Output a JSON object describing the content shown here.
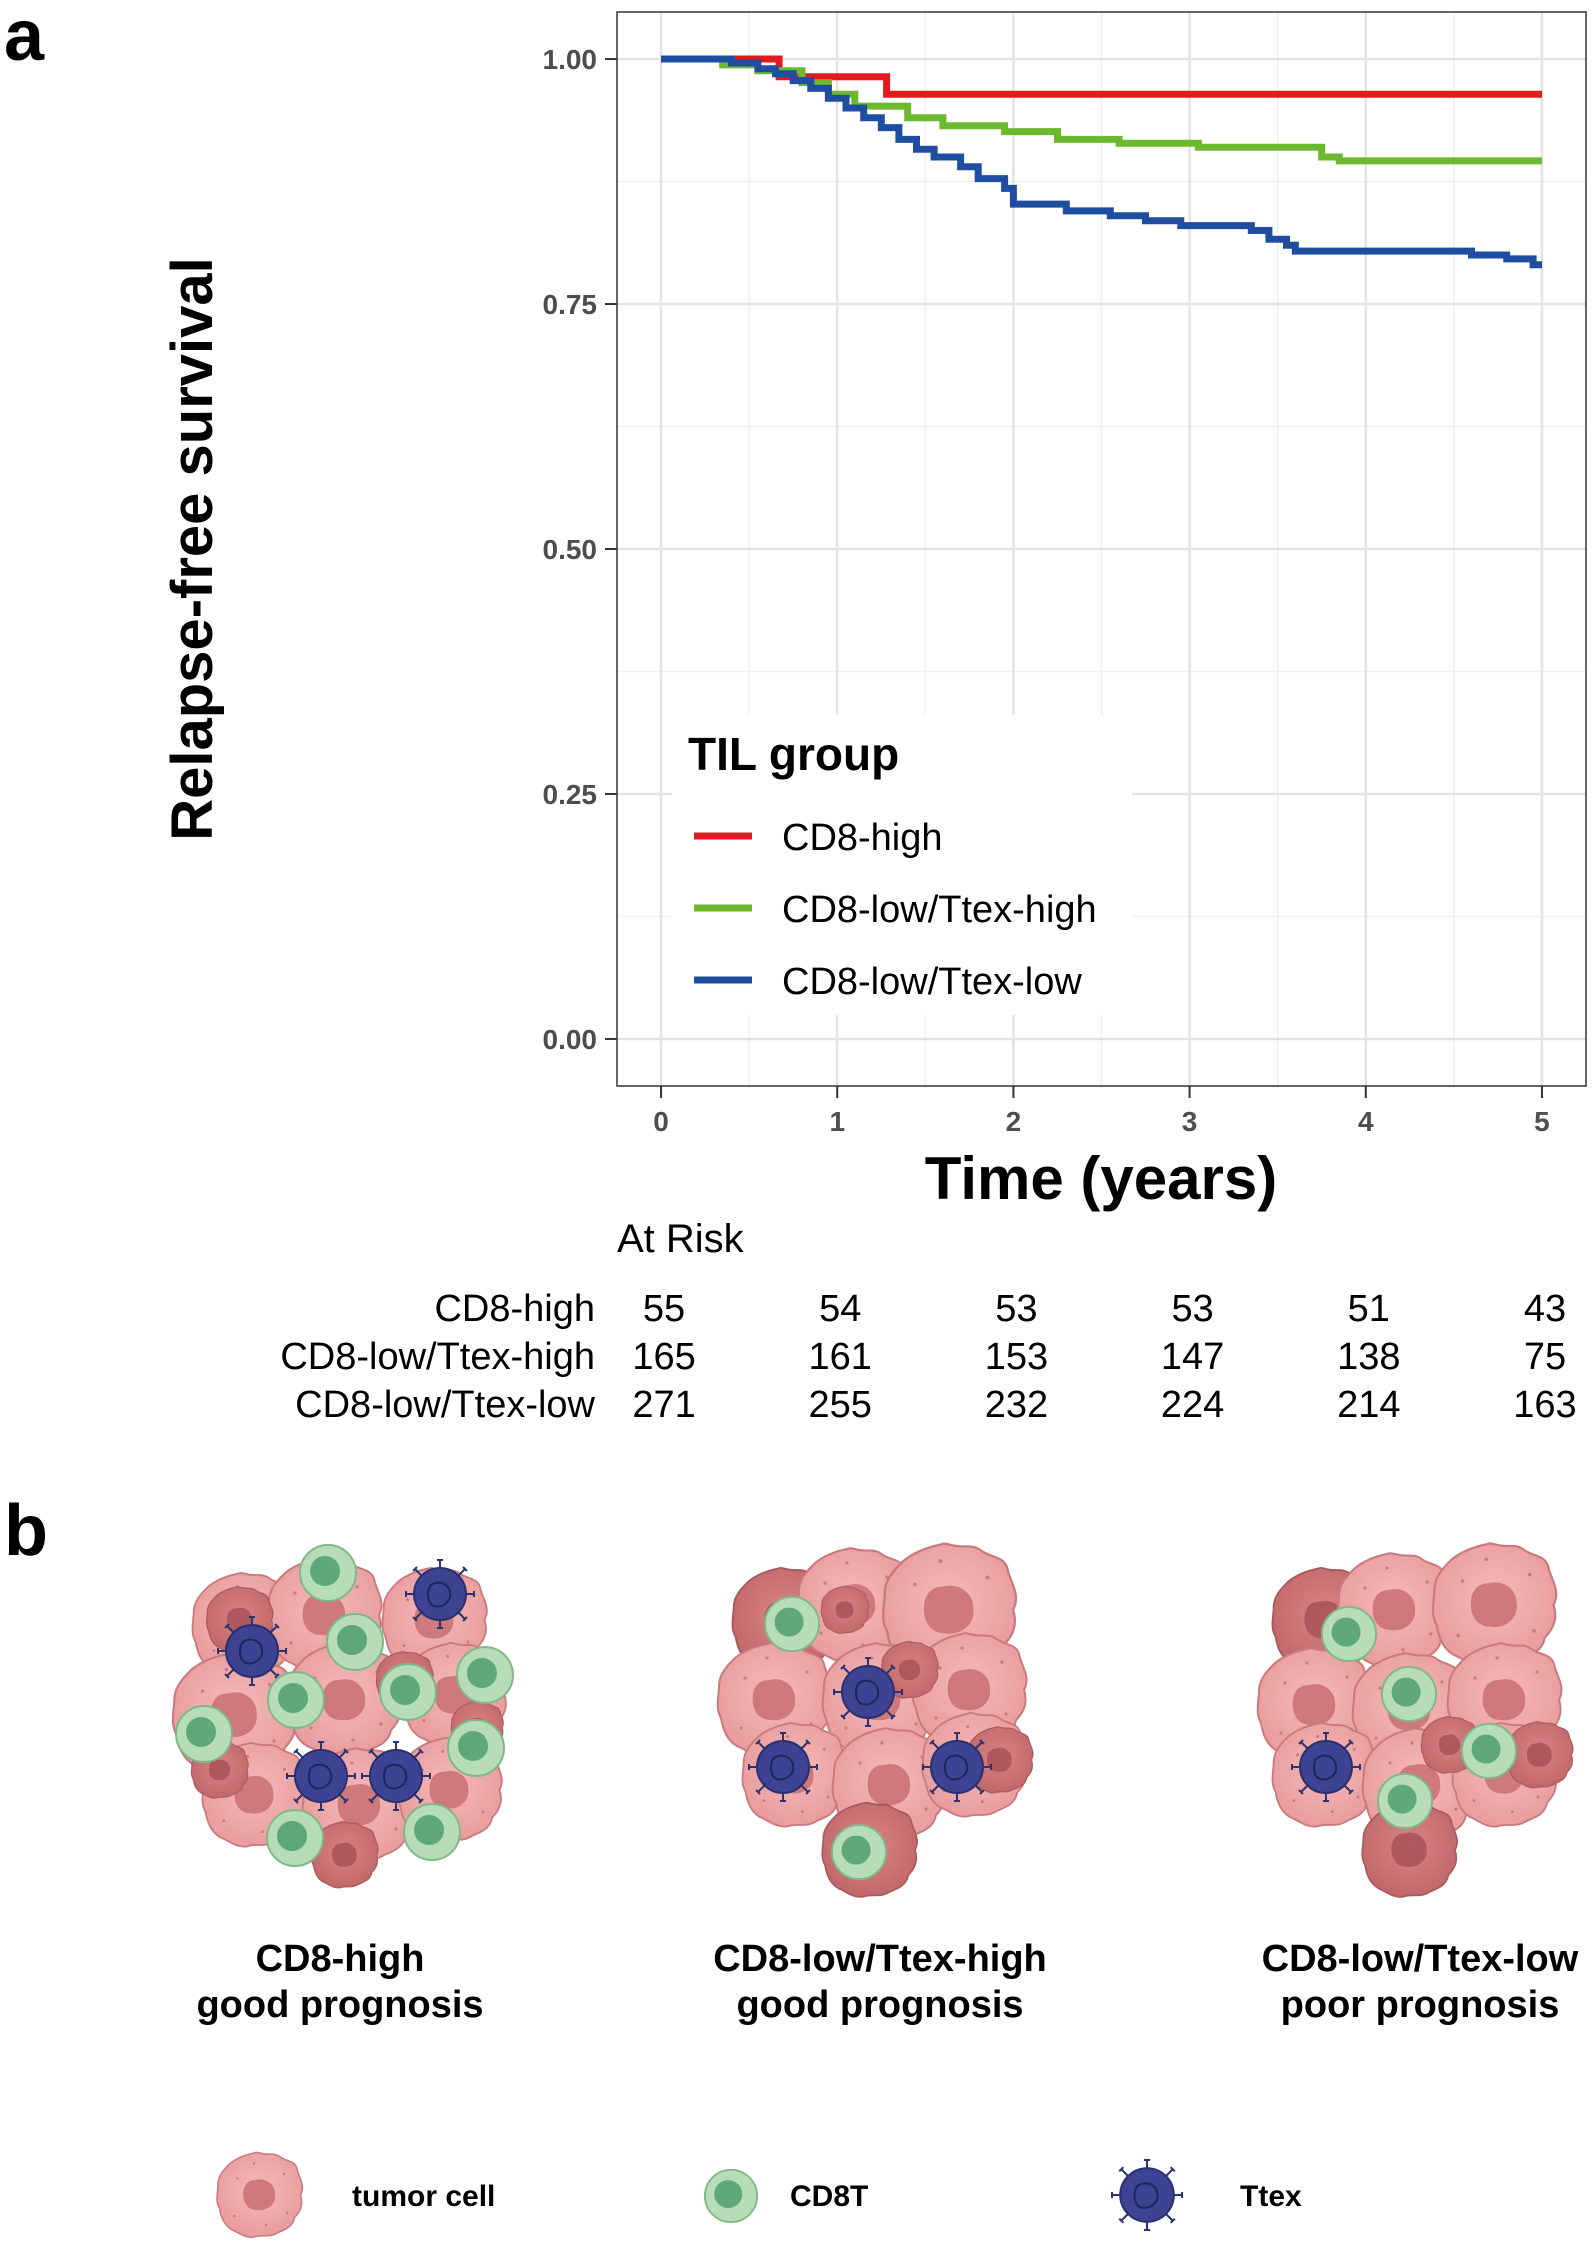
{
  "panel_a": {
    "letter": "a"
  },
  "panel_b": {
    "letter": "b",
    "groups": [
      {
        "line1": "CD8-high",
        "line2": "good prognosis"
      },
      {
        "line1": "CD8-low/Ttex-high",
        "line2": "good prognosis"
      },
      {
        "line1": "CD8-low/Ttex-low",
        "line2": "poor prognosis"
      }
    ],
    "legend": {
      "tumor": "tumor cell",
      "cd8": "CD8T",
      "ttex": "Ttex"
    }
  },
  "chart_data": {
    "type": "line",
    "subtype": "kaplan-meier step",
    "xlabel": "Time (years)",
    "ylabel": "Relapse-free survival",
    "xlim": [
      -0.25,
      5.25
    ],
    "ylim": [
      -0.048,
      1.048
    ],
    "xticks": [
      0,
      1,
      2,
      3,
      4,
      5
    ],
    "xtick_labels": [
      "0",
      "1",
      "2",
      "3",
      "4",
      "5"
    ],
    "yticks": [
      0,
      0.25,
      0.5,
      0.75,
      1.0
    ],
    "ytick_labels": [
      "0.00",
      "0.25",
      "0.50",
      "0.75",
      "1.00"
    ],
    "grid": true,
    "legend": {
      "title": "TIL group",
      "placement": "bottom-left inside"
    },
    "series": [
      {
        "name": "CD8-high",
        "color": "#e41a1c",
        "points": [
          [
            0,
            1.0
          ],
          [
            0.67,
            1.0
          ],
          [
            0.67,
            0.982
          ],
          [
            1.28,
            0.982
          ],
          [
            1.28,
            0.964
          ],
          [
            5,
            0.964
          ]
        ]
      },
      {
        "name": "CD8-low/Ttex-high",
        "color": "#6cb82e",
        "points": [
          [
            0,
            1.0
          ],
          [
            0.35,
            1.0
          ],
          [
            0.35,
            0.994
          ],
          [
            0.55,
            0.994
          ],
          [
            0.55,
            0.988
          ],
          [
            0.8,
            0.988
          ],
          [
            0.8,
            0.976
          ],
          [
            0.95,
            0.976
          ],
          [
            0.95,
            0.964
          ],
          [
            1.1,
            0.964
          ],
          [
            1.1,
            0.952
          ],
          [
            1.4,
            0.952
          ],
          [
            1.4,
            0.94
          ],
          [
            1.6,
            0.94
          ],
          [
            1.6,
            0.932
          ],
          [
            1.95,
            0.932
          ],
          [
            1.95,
            0.926
          ],
          [
            2.25,
            0.926
          ],
          [
            2.25,
            0.918
          ],
          [
            2.6,
            0.918
          ],
          [
            2.6,
            0.914
          ],
          [
            3.05,
            0.914
          ],
          [
            3.05,
            0.91
          ],
          [
            3.75,
            0.91
          ],
          [
            3.75,
            0.9
          ],
          [
            3.85,
            0.9
          ],
          [
            3.85,
            0.896
          ],
          [
            5,
            0.896
          ]
        ]
      },
      {
        "name": "CD8-low/Ttex-low",
        "color": "#1f4ea1",
        "points": [
          [
            0,
            1.0
          ],
          [
            0.4,
            1.0
          ],
          [
            0.4,
            0.996
          ],
          [
            0.55,
            0.996
          ],
          [
            0.55,
            0.99
          ],
          [
            0.65,
            0.99
          ],
          [
            0.65,
            0.985
          ],
          [
            0.75,
            0.985
          ],
          [
            0.75,
            0.978
          ],
          [
            0.85,
            0.978
          ],
          [
            0.85,
            0.97
          ],
          [
            0.95,
            0.97
          ],
          [
            0.95,
            0.96
          ],
          [
            1.05,
            0.96
          ],
          [
            1.05,
            0.95
          ],
          [
            1.15,
            0.95
          ],
          [
            1.15,
            0.94
          ],
          [
            1.25,
            0.94
          ],
          [
            1.25,
            0.93
          ],
          [
            1.35,
            0.93
          ],
          [
            1.35,
            0.918
          ],
          [
            1.45,
            0.918
          ],
          [
            1.45,
            0.908
          ],
          [
            1.55,
            0.908
          ],
          [
            1.55,
            0.9
          ],
          [
            1.7,
            0.9
          ],
          [
            1.7,
            0.89
          ],
          [
            1.8,
            0.89
          ],
          [
            1.8,
            0.878
          ],
          [
            1.95,
            0.878
          ],
          [
            1.95,
            0.868
          ],
          [
            2.0,
            0.868
          ],
          [
            2.0,
            0.852
          ],
          [
            2.3,
            0.852
          ],
          [
            2.3,
            0.845
          ],
          [
            2.55,
            0.845
          ],
          [
            2.55,
            0.84
          ],
          [
            2.75,
            0.84
          ],
          [
            2.75,
            0.835
          ],
          [
            2.95,
            0.835
          ],
          [
            2.95,
            0.83
          ],
          [
            3.35,
            0.83
          ],
          [
            3.35,
            0.825
          ],
          [
            3.45,
            0.825
          ],
          [
            3.45,
            0.816
          ],
          [
            3.55,
            0.816
          ],
          [
            3.55,
            0.81
          ],
          [
            3.6,
            0.81
          ],
          [
            3.6,
            0.804
          ],
          [
            4.6,
            0.804
          ],
          [
            4.6,
            0.8
          ],
          [
            4.8,
            0.8
          ],
          [
            4.8,
            0.796
          ],
          [
            4.95,
            0.796
          ],
          [
            4.95,
            0.79
          ],
          [
            5,
            0.79
          ]
        ]
      }
    ],
    "at_risk": {
      "title": "At Risk",
      "times": [
        0,
        1,
        2,
        3,
        4,
        5
      ],
      "rows": [
        {
          "name": "CD8-high",
          "values": [
            55,
            54,
            53,
            53,
            51,
            43
          ]
        },
        {
          "name": "CD8-low/Ttex-high",
          "values": [
            165,
            161,
            153,
            147,
            138,
            75
          ]
        },
        {
          "name": "CD8-low/Ttex-low",
          "values": [
            271,
            255,
            232,
            224,
            214,
            163
          ]
        }
      ]
    }
  }
}
